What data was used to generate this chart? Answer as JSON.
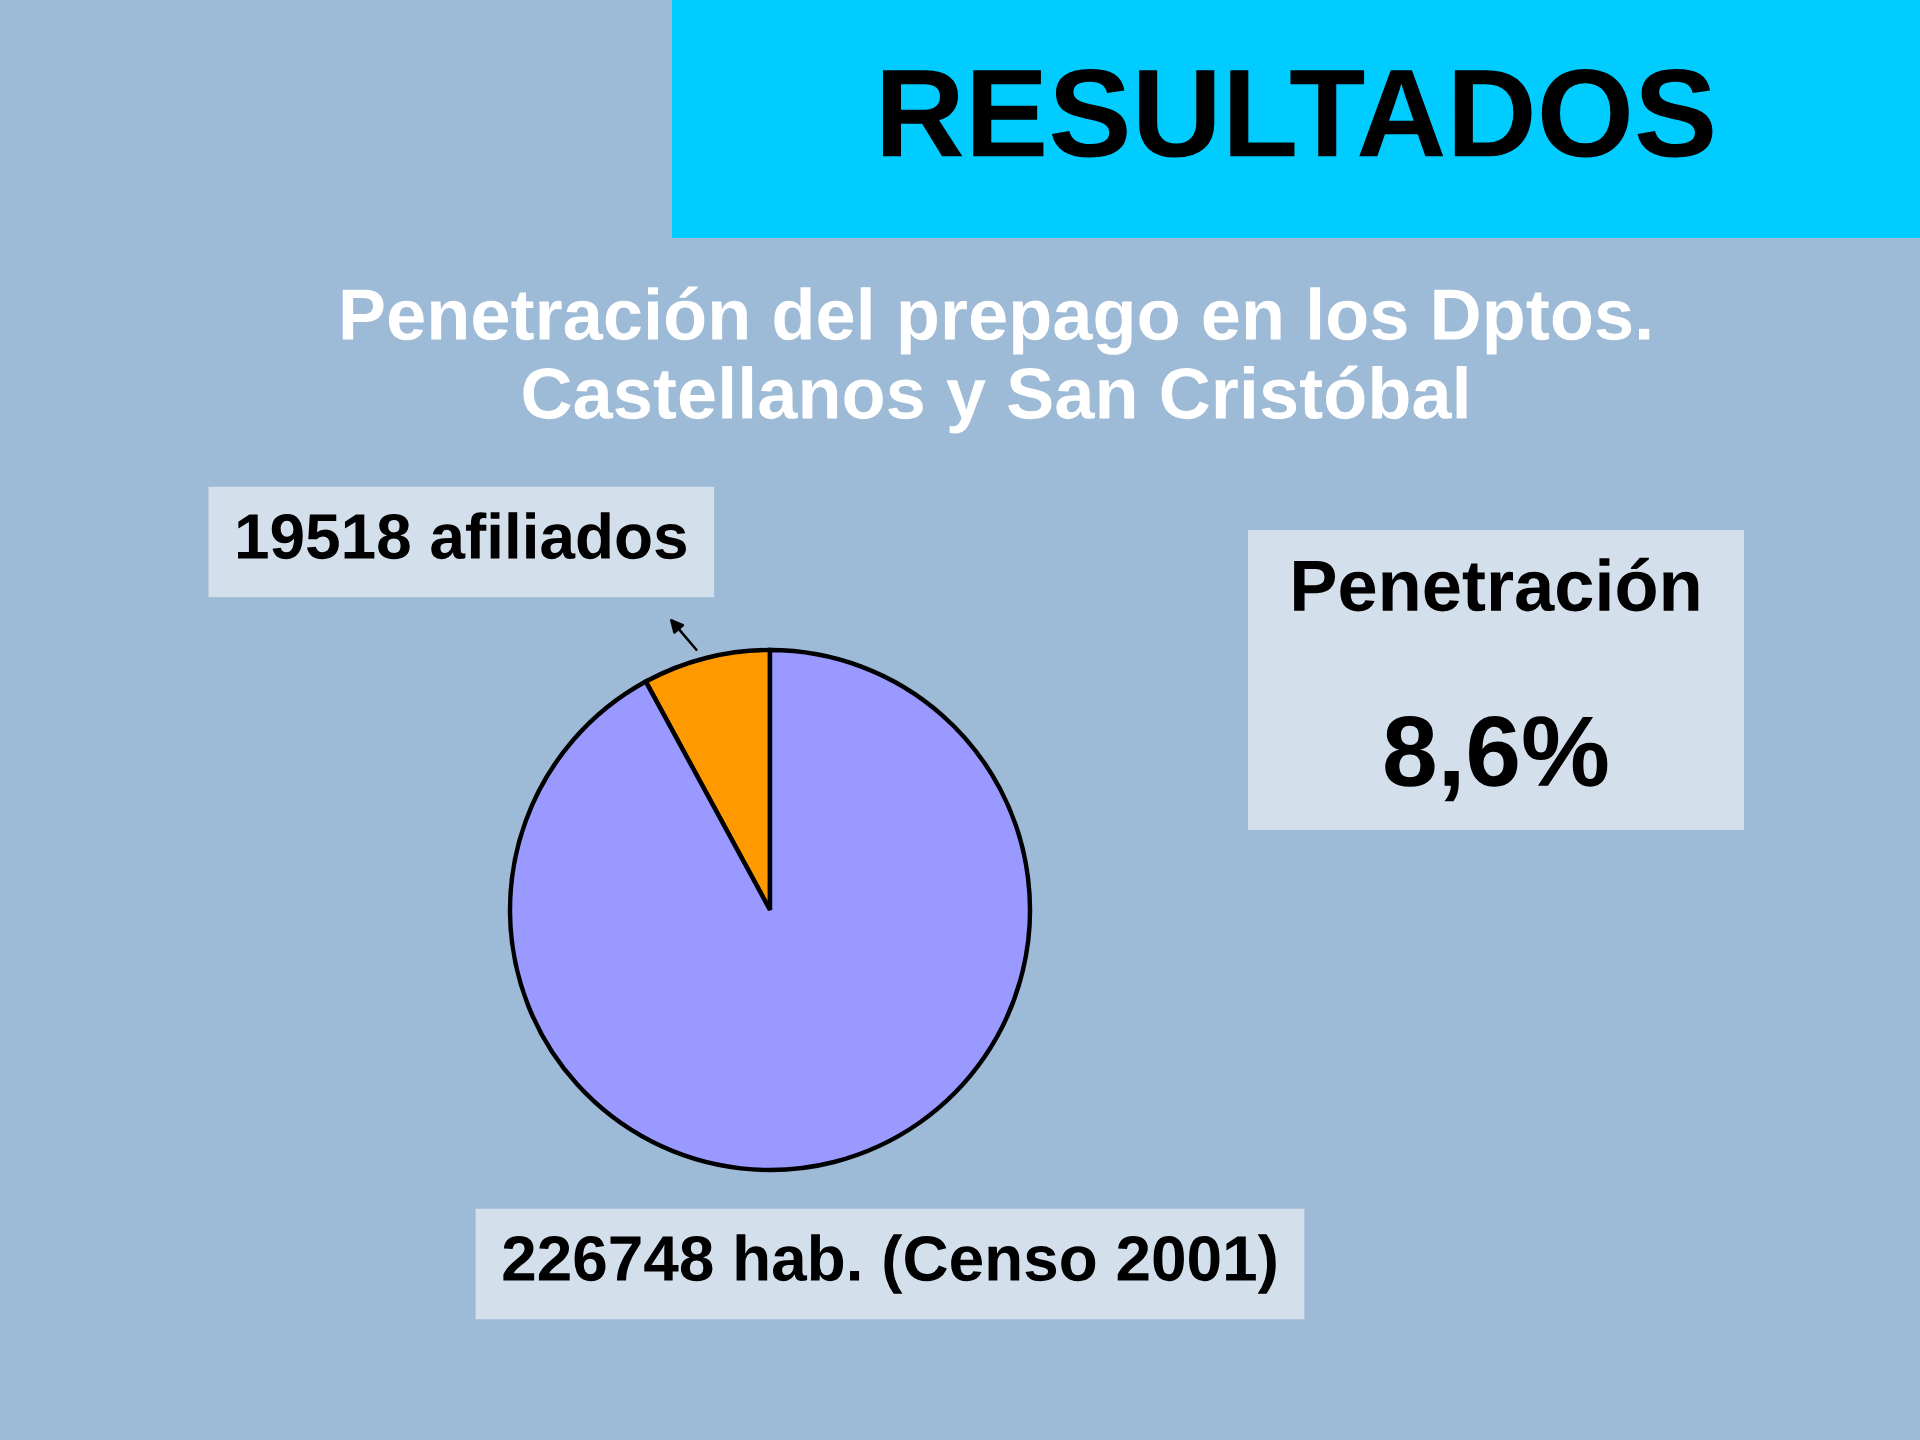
{
  "chart_data": {
    "type": "pie",
    "title": "RESULTADOS",
    "subtitle": "Penetración del prepago en los Dptos. Castellanos y San Cristóbal",
    "categories": [
      "19518 afiliados",
      "226748 hab. (Censo 2001)"
    ],
    "values": [
      19518,
      226748
    ],
    "colors": [
      "#ff9900",
      "#9999ff"
    ],
    "annotations": [
      "Penetración",
      "8,6%"
    ]
  }
}
